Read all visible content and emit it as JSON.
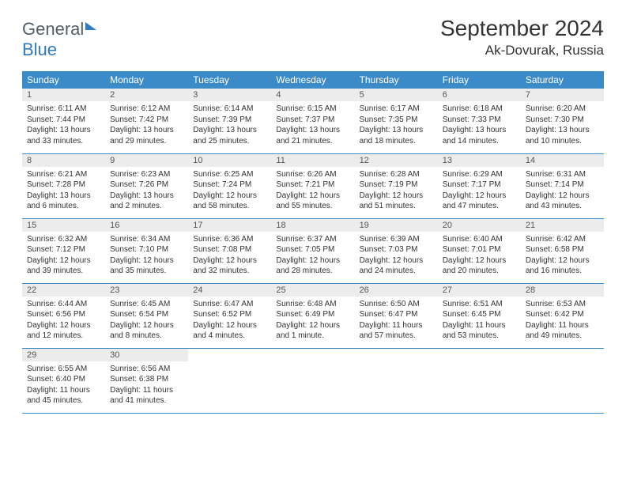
{
  "logo": {
    "line1": "General",
    "line2": "Blue"
  },
  "title": "September 2024",
  "location": "Ak-Dovurak, Russia",
  "colors": {
    "header_bg": "#3b8bc9",
    "header_fg": "#ffffff",
    "daynum_bg": "#ececec",
    "border": "#3b8bc9",
    "logo_gray": "#555e66",
    "logo_blue": "#2f7bbf"
  },
  "weekdays": [
    "Sunday",
    "Monday",
    "Tuesday",
    "Wednesday",
    "Thursday",
    "Friday",
    "Saturday"
  ],
  "days": [
    {
      "n": "1",
      "sr": "6:11 AM",
      "ss": "7:44 PM",
      "dl": "13 hours and 33 minutes."
    },
    {
      "n": "2",
      "sr": "6:12 AM",
      "ss": "7:42 PM",
      "dl": "13 hours and 29 minutes."
    },
    {
      "n": "3",
      "sr": "6:14 AM",
      "ss": "7:39 PM",
      "dl": "13 hours and 25 minutes."
    },
    {
      "n": "4",
      "sr": "6:15 AM",
      "ss": "7:37 PM",
      "dl": "13 hours and 21 minutes."
    },
    {
      "n": "5",
      "sr": "6:17 AM",
      "ss": "7:35 PM",
      "dl": "13 hours and 18 minutes."
    },
    {
      "n": "6",
      "sr": "6:18 AM",
      "ss": "7:33 PM",
      "dl": "13 hours and 14 minutes."
    },
    {
      "n": "7",
      "sr": "6:20 AM",
      "ss": "7:30 PM",
      "dl": "13 hours and 10 minutes."
    },
    {
      "n": "8",
      "sr": "6:21 AM",
      "ss": "7:28 PM",
      "dl": "13 hours and 6 minutes."
    },
    {
      "n": "9",
      "sr": "6:23 AM",
      "ss": "7:26 PM",
      "dl": "13 hours and 2 minutes."
    },
    {
      "n": "10",
      "sr": "6:25 AM",
      "ss": "7:24 PM",
      "dl": "12 hours and 58 minutes."
    },
    {
      "n": "11",
      "sr": "6:26 AM",
      "ss": "7:21 PM",
      "dl": "12 hours and 55 minutes."
    },
    {
      "n": "12",
      "sr": "6:28 AM",
      "ss": "7:19 PM",
      "dl": "12 hours and 51 minutes."
    },
    {
      "n": "13",
      "sr": "6:29 AM",
      "ss": "7:17 PM",
      "dl": "12 hours and 47 minutes."
    },
    {
      "n": "14",
      "sr": "6:31 AM",
      "ss": "7:14 PM",
      "dl": "12 hours and 43 minutes."
    },
    {
      "n": "15",
      "sr": "6:32 AM",
      "ss": "7:12 PM",
      "dl": "12 hours and 39 minutes."
    },
    {
      "n": "16",
      "sr": "6:34 AM",
      "ss": "7:10 PM",
      "dl": "12 hours and 35 minutes."
    },
    {
      "n": "17",
      "sr": "6:36 AM",
      "ss": "7:08 PM",
      "dl": "12 hours and 32 minutes."
    },
    {
      "n": "18",
      "sr": "6:37 AM",
      "ss": "7:05 PM",
      "dl": "12 hours and 28 minutes."
    },
    {
      "n": "19",
      "sr": "6:39 AM",
      "ss": "7:03 PM",
      "dl": "12 hours and 24 minutes."
    },
    {
      "n": "20",
      "sr": "6:40 AM",
      "ss": "7:01 PM",
      "dl": "12 hours and 20 minutes."
    },
    {
      "n": "21",
      "sr": "6:42 AM",
      "ss": "6:58 PM",
      "dl": "12 hours and 16 minutes."
    },
    {
      "n": "22",
      "sr": "6:44 AM",
      "ss": "6:56 PM",
      "dl": "12 hours and 12 minutes."
    },
    {
      "n": "23",
      "sr": "6:45 AM",
      "ss": "6:54 PM",
      "dl": "12 hours and 8 minutes."
    },
    {
      "n": "24",
      "sr": "6:47 AM",
      "ss": "6:52 PM",
      "dl": "12 hours and 4 minutes."
    },
    {
      "n": "25",
      "sr": "6:48 AM",
      "ss": "6:49 PM",
      "dl": "12 hours and 1 minute."
    },
    {
      "n": "26",
      "sr": "6:50 AM",
      "ss": "6:47 PM",
      "dl": "11 hours and 57 minutes."
    },
    {
      "n": "27",
      "sr": "6:51 AM",
      "ss": "6:45 PM",
      "dl": "11 hours and 53 minutes."
    },
    {
      "n": "28",
      "sr": "6:53 AM",
      "ss": "6:42 PM",
      "dl": "11 hours and 49 minutes."
    },
    {
      "n": "29",
      "sr": "6:55 AM",
      "ss": "6:40 PM",
      "dl": "11 hours and 45 minutes."
    },
    {
      "n": "30",
      "sr": "6:56 AM",
      "ss": "6:38 PM",
      "dl": "11 hours and 41 minutes."
    }
  ],
  "labels": {
    "sunrise": "Sunrise:",
    "sunset": "Sunset:",
    "daylight": "Daylight:"
  }
}
